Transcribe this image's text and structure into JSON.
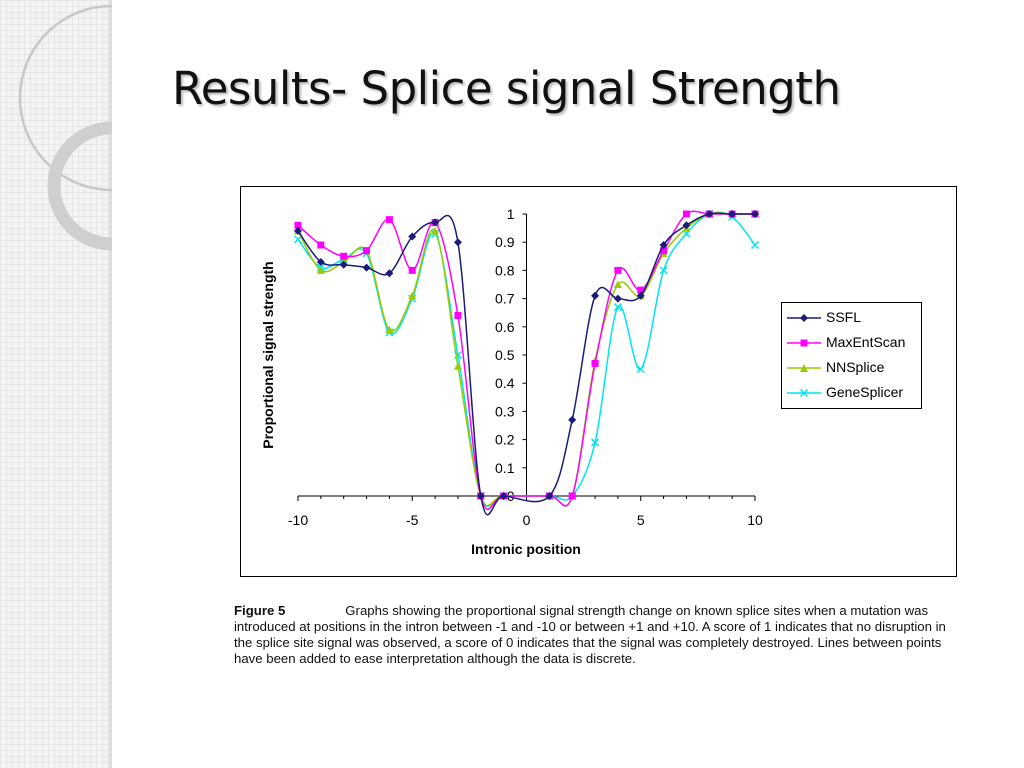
{
  "slide": {
    "title": "Results- Splice signal Strength"
  },
  "caption": {
    "label": "Figure 5",
    "text": "Graphs showing the proportional signal strength change on known splice sites when a mutation was introduced at positions in the intron between -1 and -10 or between +1 and +10.  A score of 1 indicates that no disruption in the splice site signal was observed, a score of 0 indicates that the signal was completely destroyed.  Lines between points have been added to ease interpretation although the data is discrete."
  },
  "chart_data": {
    "type": "line",
    "xlabel": "Intronic position",
    "ylabel": "Proportional signal strength",
    "xlim": [
      -10,
      10
    ],
    "ylim": [
      0,
      1
    ],
    "x_ticks": [
      "-10",
      "-5",
      "0",
      "5",
      "10"
    ],
    "y_ticks": [
      "0",
      "0.1",
      "0.2",
      "0.3",
      "0.4",
      "0.5",
      "0.6",
      "0.7",
      "0.8",
      "0.9",
      "1"
    ],
    "legend_position": "right",
    "series": [
      {
        "name": "SSFL",
        "color": "#1b1b7a",
        "marker": "diamond",
        "x": [
          -10,
          -9,
          -8,
          -7,
          -6,
          -5,
          -4,
          -3,
          -2,
          -1,
          1,
          2,
          3,
          4,
          5,
          6,
          7,
          8,
          9,
          10
        ],
        "y": [
          0.94,
          0.83,
          0.82,
          0.81,
          0.79,
          0.92,
          0.97,
          0.9,
          0,
          0,
          0,
          0.27,
          0.71,
          0.7,
          0.71,
          0.89,
          0.96,
          1.0,
          1.0,
          1.0
        ]
      },
      {
        "name": "MaxEntScan",
        "color": "#ff00ff",
        "marker": "square",
        "x": [
          -10,
          -9,
          -8,
          -7,
          -6,
          -5,
          -4,
          -3,
          -2,
          -1,
          1,
          2,
          3,
          4,
          5,
          6,
          7,
          8,
          9,
          10
        ],
        "y": [
          0.96,
          0.89,
          0.85,
          0.87,
          0.98,
          0.8,
          0.97,
          0.64,
          0,
          0,
          0,
          0,
          0.47,
          0.8,
          0.73,
          0.87,
          1.0,
          1.0,
          1.0,
          1.0
        ]
      },
      {
        "name": "NNSplice",
        "color": "#99cc00",
        "marker": "triangle",
        "x": [
          -10,
          -9,
          -8,
          -7,
          -6,
          -5,
          -4,
          -3,
          -2,
          -1,
          1,
          2,
          3,
          4,
          5,
          6,
          7,
          8,
          9,
          10
        ],
        "y": [
          0.94,
          0.8,
          0.83,
          0.87,
          0.59,
          0.71,
          0.94,
          0.46,
          0,
          0,
          0,
          0,
          0.48,
          0.75,
          0.71,
          0.86,
          0.95,
          1.0,
          1.0,
          1.0
        ]
      },
      {
        "name": "GeneSplicer",
        "color": "#00e5ee",
        "marker": "x",
        "x": [
          -10,
          -9,
          -8,
          -7,
          -6,
          -5,
          -4,
          -3,
          -2,
          -1,
          1,
          2,
          3,
          4,
          5,
          6,
          7,
          8,
          9,
          10
        ],
        "y": [
          0.91,
          0.81,
          0.84,
          0.86,
          0.58,
          0.7,
          0.93,
          0.5,
          0,
          0,
          0,
          0,
          0.19,
          0.67,
          0.45,
          0.8,
          0.93,
          1.0,
          0.99,
          0.89
        ]
      }
    ]
  }
}
